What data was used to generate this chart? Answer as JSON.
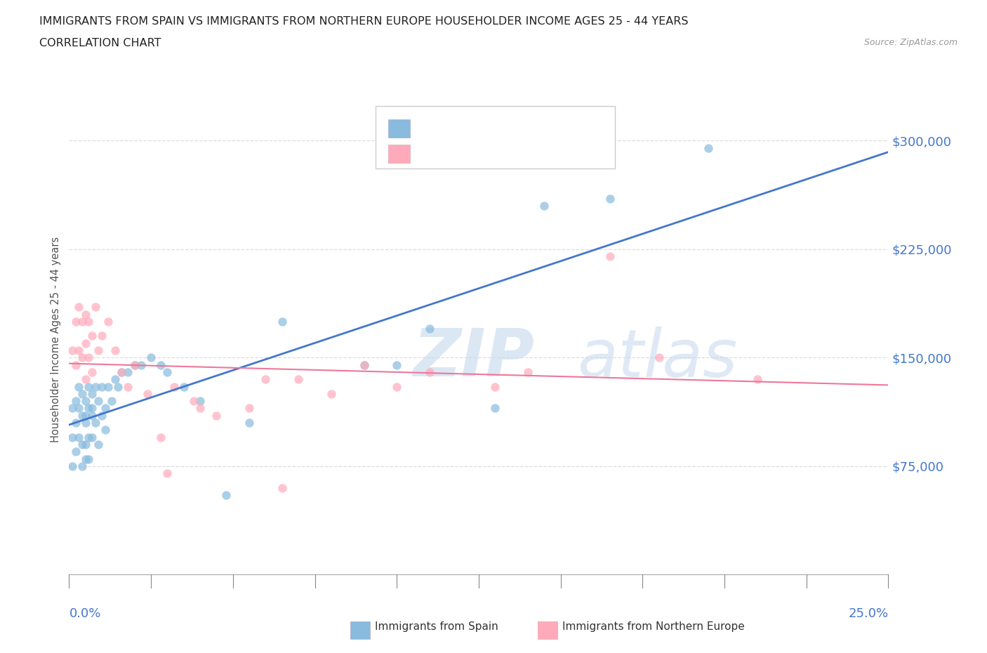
{
  "title_line1": "IMMIGRANTS FROM SPAIN VS IMMIGRANTS FROM NORTHERN EUROPE HOUSEHOLDER INCOME AGES 25 - 44 YEARS",
  "title_line2": "CORRELATION CHART",
  "source_text": "Source: ZipAtlas.com",
  "ylabel": "Householder Income Ages 25 - 44 years",
  "watermark_zip": "ZIP",
  "watermark_atlas": "atlas",
  "color_spain": "#88bbdd",
  "color_northern": "#ffaabb",
  "line_color_spain": "#4477cc",
  "line_color_northern": "#ee7799",
  "label_color": "#4477cc",
  "bg_color": "#ffffff",
  "grid_color": "#dddddd",
  "xmin": 0.0,
  "xmax": 0.25,
  "ymin": 0,
  "ymax": 325000,
  "yticks": [
    75000,
    150000,
    225000,
    300000
  ],
  "ytick_labels": [
    "$75,000",
    "$150,000",
    "$225,000",
    "$300,000"
  ],
  "spain_x": [
    0.001,
    0.001,
    0.001,
    0.002,
    0.002,
    0.002,
    0.003,
    0.003,
    0.003,
    0.004,
    0.004,
    0.004,
    0.004,
    0.005,
    0.005,
    0.005,
    0.005,
    0.005,
    0.006,
    0.006,
    0.006,
    0.006,
    0.007,
    0.007,
    0.007,
    0.007,
    0.008,
    0.008,
    0.009,
    0.009,
    0.01,
    0.01,
    0.011,
    0.011,
    0.012,
    0.013,
    0.014,
    0.015,
    0.016,
    0.018,
    0.02,
    0.022,
    0.025,
    0.028,
    0.03,
    0.035,
    0.04,
    0.048,
    0.055,
    0.065,
    0.09,
    0.1,
    0.11,
    0.13,
    0.145,
    0.165,
    0.195
  ],
  "spain_y": [
    115000,
    95000,
    75000,
    120000,
    105000,
    85000,
    130000,
    115000,
    95000,
    125000,
    110000,
    90000,
    75000,
    120000,
    105000,
    90000,
    110000,
    80000,
    130000,
    115000,
    95000,
    80000,
    125000,
    110000,
    95000,
    115000,
    130000,
    105000,
    120000,
    90000,
    130000,
    110000,
    115000,
    100000,
    130000,
    120000,
    135000,
    130000,
    140000,
    140000,
    145000,
    145000,
    150000,
    145000,
    140000,
    130000,
    120000,
    55000,
    105000,
    175000,
    145000,
    145000,
    170000,
    115000,
    255000,
    260000,
    295000
  ],
  "northern_x": [
    0.001,
    0.002,
    0.002,
    0.003,
    0.003,
    0.004,
    0.004,
    0.005,
    0.005,
    0.005,
    0.006,
    0.006,
    0.007,
    0.007,
    0.008,
    0.009,
    0.01,
    0.012,
    0.014,
    0.016,
    0.018,
    0.02,
    0.024,
    0.028,
    0.03,
    0.032,
    0.038,
    0.04,
    0.045,
    0.055,
    0.06,
    0.065,
    0.07,
    0.08,
    0.09,
    0.1,
    0.11,
    0.13,
    0.14,
    0.165,
    0.18,
    0.21
  ],
  "northern_y": [
    155000,
    175000,
    145000,
    185000,
    155000,
    175000,
    150000,
    180000,
    160000,
    135000,
    175000,
    150000,
    165000,
    140000,
    185000,
    155000,
    165000,
    175000,
    155000,
    140000,
    130000,
    145000,
    125000,
    95000,
    70000,
    130000,
    120000,
    115000,
    110000,
    115000,
    135000,
    60000,
    135000,
    125000,
    145000,
    130000,
    140000,
    130000,
    140000,
    220000,
    150000,
    135000
  ]
}
